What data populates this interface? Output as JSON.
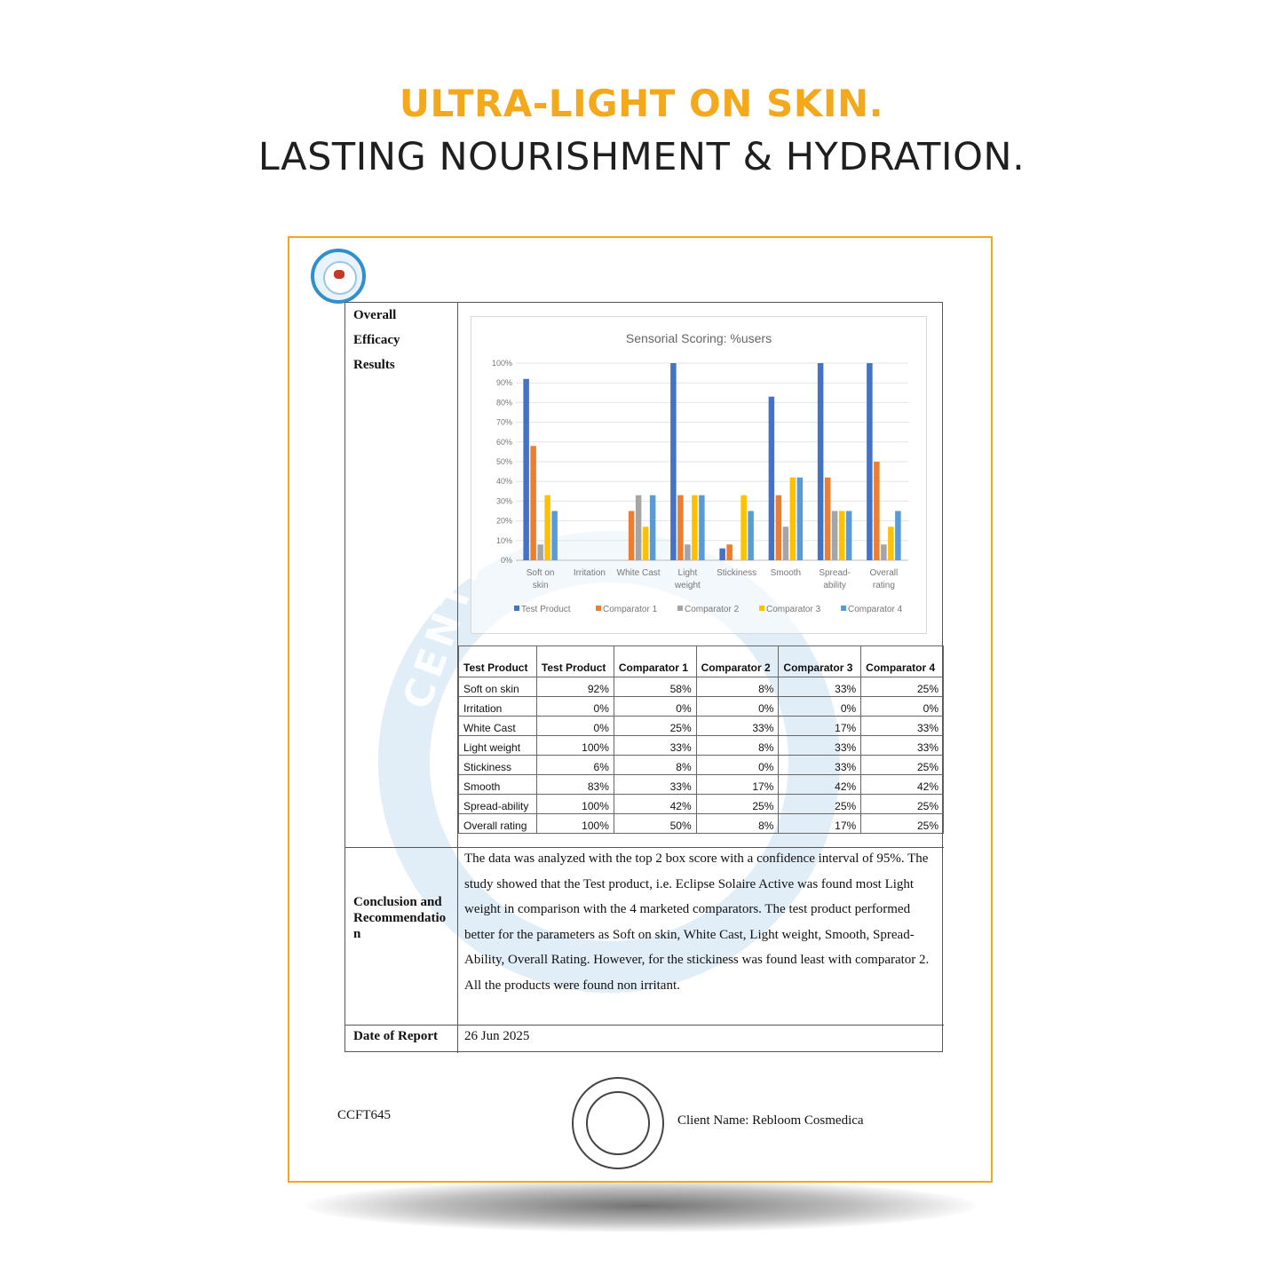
{
  "headline": {
    "line1": "ULTRA-LIGHT ON SKIN.",
    "line2": "LASTING NOURISHMENT & HYDRATION."
  },
  "document": {
    "section_labels": {
      "efficacy_line1": "Overall",
      "efficacy_line2": "Efficacy",
      "efficacy_line3": "Results",
      "conclusion_line1": "Conclusion and",
      "conclusion_line2": "Recommendatio",
      "conclusion_line3": "n",
      "date": "Date of Report"
    },
    "table": {
      "headers": [
        "Test Product",
        "Test Product",
        "Comparator 1",
        "Comparator 2",
        "Comparator 3",
        "Comparator 4"
      ],
      "rows": [
        {
          "label": "Soft on skin",
          "values": [
            "92%",
            "58%",
            "8%",
            "33%",
            "25%"
          ]
        },
        {
          "label": "Irritation",
          "values": [
            "0%",
            "0%",
            "0%",
            "0%",
            "0%"
          ]
        },
        {
          "label": "White Cast",
          "values": [
            "0%",
            "25%",
            "33%",
            "17%",
            "33%"
          ]
        },
        {
          "label": "Light weight",
          "values": [
            "100%",
            "33%",
            "8%",
            "33%",
            "33%"
          ]
        },
        {
          "label": "Stickiness",
          "values": [
            "6%",
            "8%",
            "0%",
            "33%",
            "25%"
          ]
        },
        {
          "label": "Smooth",
          "values": [
            "83%",
            "33%",
            "17%",
            "42%",
            "42%"
          ]
        },
        {
          "label": "Spread-ability",
          "values": [
            "100%",
            "42%",
            "25%",
            "25%",
            "25%"
          ]
        },
        {
          "label": "Overall rating",
          "values": [
            "100%",
            "50%",
            "8%",
            "17%",
            "25%"
          ]
        }
      ]
    },
    "conclusion_text": "The data was analyzed with the top 2 box score with a confidence interval of 95%. The study showed that the Test product, i.e. Eclipse Solaire Active was found most Light weight in comparison with the 4 marketed comparators. The test product performed better for the parameters as Soft on skin, White Cast, Light weight, Smooth, Spread-Ability, Overall Rating. However, for the stickiness was found least with comparator 2. All the products were found non irritant.",
    "date_value": "26 Jun 2025",
    "footer_code": "CCFT645",
    "client_name": "Client Name: Rebloom Cosmedica",
    "watermark_text": "CENTRE FO"
  },
  "chart_data": {
    "type": "bar",
    "title": "Sensorial Scoring: %users",
    "categories": [
      "Soft on skin",
      "Irritation",
      "White Cast",
      "Light weight",
      "Stickiness",
      "Smooth",
      "Spread-ability",
      "Overall rating"
    ],
    "category_labels": [
      [
        "Soft on",
        "skin"
      ],
      [
        "Irritation"
      ],
      [
        "White Cast"
      ],
      [
        "Light",
        "weight"
      ],
      [
        "Stickiness"
      ],
      [
        "Smooth"
      ],
      [
        "Spread-",
        "ability"
      ],
      [
        "Overall",
        "rating"
      ]
    ],
    "series": [
      {
        "name": "Test Product",
        "color": "#4472c4",
        "values": [
          92,
          0,
          0,
          100,
          6,
          83,
          100,
          100
        ]
      },
      {
        "name": "Comparator 1",
        "color": "#ed7d31",
        "values": [
          58,
          0,
          25,
          33,
          8,
          33,
          42,
          50
        ]
      },
      {
        "name": "Comparator 2",
        "color": "#a5a5a5",
        "values": [
          8,
          0,
          33,
          8,
          0,
          17,
          25,
          8
        ]
      },
      {
        "name": "Comparator 3",
        "color": "#ffc000",
        "values": [
          33,
          0,
          17,
          33,
          33,
          42,
          25,
          17
        ]
      },
      {
        "name": "Comparator 4",
        "color": "#5b9bd5",
        "values": [
          25,
          0,
          33,
          33,
          25,
          42,
          25,
          25
        ]
      }
    ],
    "yticks": [
      "0%",
      "10%",
      "20%",
      "30%",
      "40%",
      "50%",
      "60%",
      "70%",
      "80%",
      "90%",
      "100%"
    ],
    "ylim": [
      0,
      100
    ],
    "grid": true,
    "legend_position": "bottom"
  }
}
